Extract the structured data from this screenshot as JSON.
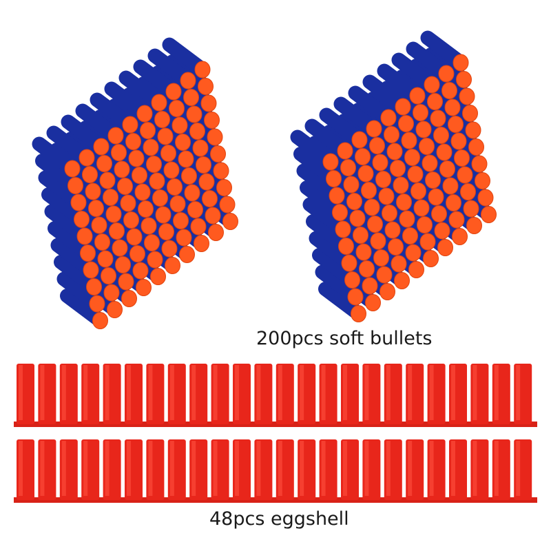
{
  "product": {
    "bullets_caption": "200pcs soft bullets",
    "shells_caption": "48pcs eggshell",
    "colors": {
      "dart_body": "#1a2fa0",
      "dart_tip": "#ff5a1f",
      "shell": "#e8261b"
    },
    "dart_stacks": 2,
    "shell_rows": 2,
    "shells_per_row": 24
  }
}
